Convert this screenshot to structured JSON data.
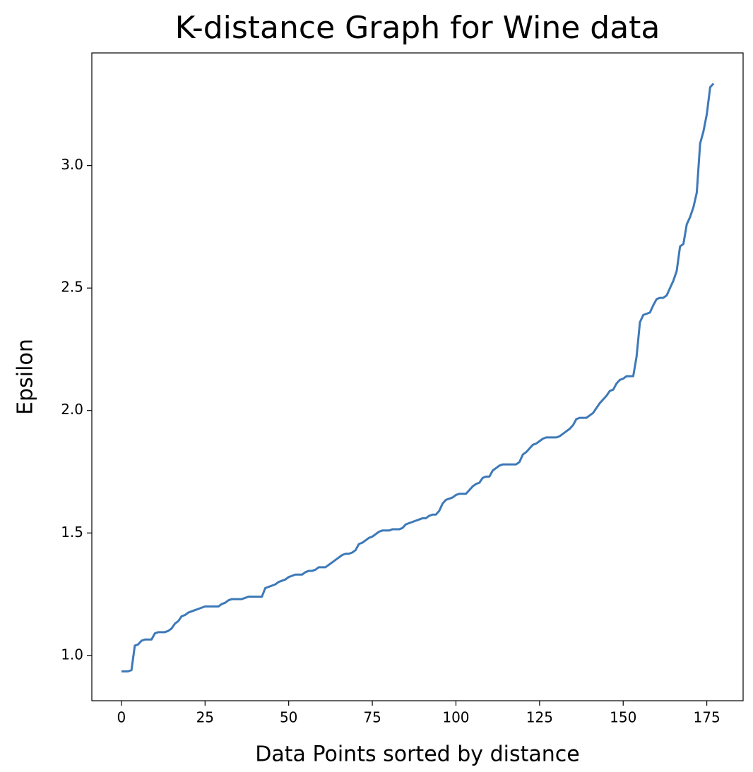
{
  "chart_data": {
    "type": "line",
    "title": "K-distance Graph for Wine data",
    "x_label": "Data Points sorted by distance",
    "y_label": "Epsilon",
    "color": "#3d79b8",
    "grid": false,
    "xlim": [
      -8.85,
      185.85
    ],
    "ylim": [
      0.815,
      3.46
    ],
    "xticks": [
      0,
      25,
      50,
      75,
      100,
      125,
      150,
      175
    ],
    "yticks": [
      {
        "value": 1,
        "label": "1.0"
      },
      1.5,
      {
        "value": 2,
        "label": "2.0"
      },
      2.5,
      {
        "value": 3,
        "label": "3.0"
      }
    ],
    "x": [
      0,
      1,
      2,
      3,
      4,
      5,
      6,
      7,
      8,
      9,
      10,
      11,
      12,
      13,
      14,
      15,
      16,
      17,
      18,
      19,
      20,
      21,
      22,
      23,
      24,
      25,
      26,
      27,
      28,
      29,
      30,
      31,
      32,
      33,
      34,
      35,
      36,
      37,
      38,
      39,
      40,
      41,
      42,
      43,
      44,
      45,
      46,
      47,
      48,
      49,
      50,
      51,
      52,
      53,
      54,
      55,
      56,
      57,
      58,
      59,
      60,
      61,
      62,
      63,
      64,
      65,
      66,
      67,
      68,
      69,
      70,
      71,
      72,
      73,
      74,
      75,
      76,
      77,
      78,
      79,
      80,
      81,
      82,
      83,
      84,
      85,
      86,
      87,
      88,
      89,
      90,
      91,
      92,
      93,
      94,
      95,
      96,
      97,
      98,
      99,
      100,
      101,
      102,
      103,
      104,
      105,
      106,
      107,
      108,
      109,
      110,
      111,
      112,
      113,
      114,
      115,
      116,
      117,
      118,
      119,
      120,
      121,
      122,
      123,
      124,
      125,
      126,
      127,
      128,
      129,
      130,
      131,
      132,
      133,
      134,
      135,
      136,
      137,
      138,
      139,
      140,
      141,
      142,
      143,
      144,
      145,
      146,
      147,
      148,
      149,
      150,
      151,
      152,
      153,
      154,
      155,
      156,
      157,
      158,
      159,
      160,
      161,
      162,
      163,
      164,
      165,
      166,
      167,
      168,
      169,
      170,
      171,
      172,
      173,
      174,
      175,
      176,
      177
    ],
    "values": [
      0.935,
      0.935,
      0.935,
      0.94,
      1.04,
      1.045,
      1.06,
      1.065,
      1.065,
      1.065,
      1.09,
      1.095,
      1.095,
      1.095,
      1.1,
      1.11,
      1.13,
      1.14,
      1.16,
      1.165,
      1.175,
      1.18,
      1.185,
      1.19,
      1.195,
      1.2,
      1.2,
      1.2,
      1.2,
      1.2,
      1.21,
      1.215,
      1.225,
      1.23,
      1.23,
      1.23,
      1.23,
      1.235,
      1.24,
      1.24,
      1.24,
      1.24,
      1.24,
      1.275,
      1.28,
      1.285,
      1.29,
      1.3,
      1.305,
      1.31,
      1.32,
      1.325,
      1.33,
      1.33,
      1.33,
      1.34,
      1.345,
      1.345,
      1.35,
      1.36,
      1.36,
      1.36,
      1.37,
      1.38,
      1.39,
      1.4,
      1.41,
      1.415,
      1.415,
      1.42,
      1.43,
      1.455,
      1.46,
      1.47,
      1.48,
      1.485,
      1.495,
      1.505,
      1.51,
      1.51,
      1.51,
      1.515,
      1.515,
      1.515,
      1.52,
      1.535,
      1.54,
      1.545,
      1.55,
      1.555,
      1.56,
      1.56,
      1.57,
      1.575,
      1.575,
      1.59,
      1.62,
      1.635,
      1.64,
      1.645,
      1.655,
      1.66,
      1.66,
      1.66,
      1.675,
      1.69,
      1.7,
      1.705,
      1.725,
      1.73,
      1.73,
      1.755,
      1.765,
      1.775,
      1.78,
      1.78,
      1.78,
      1.78,
      1.78,
      1.79,
      1.82,
      1.83,
      1.845,
      1.86,
      1.865,
      1.875,
      1.885,
      1.89,
      1.89,
      1.89,
      1.89,
      1.895,
      1.905,
      1.915,
      1.925,
      1.94,
      1.965,
      1.97,
      1.97,
      1.97,
      1.98,
      1.99,
      2.01,
      2.03,
      2.045,
      2.06,
      2.08,
      2.085,
      2.11,
      2.125,
      2.13,
      2.14,
      2.14,
      2.14,
      2.22,
      2.36,
      2.39,
      2.395,
      2.4,
      2.43,
      2.455,
      2.46,
      2.46,
      2.47,
      2.5,
      2.53,
      2.57,
      2.67,
      2.68,
      2.76,
      2.79,
      2.83,
      2.89,
      3.09,
      3.14,
      3.21,
      3.32,
      3.335
    ]
  }
}
